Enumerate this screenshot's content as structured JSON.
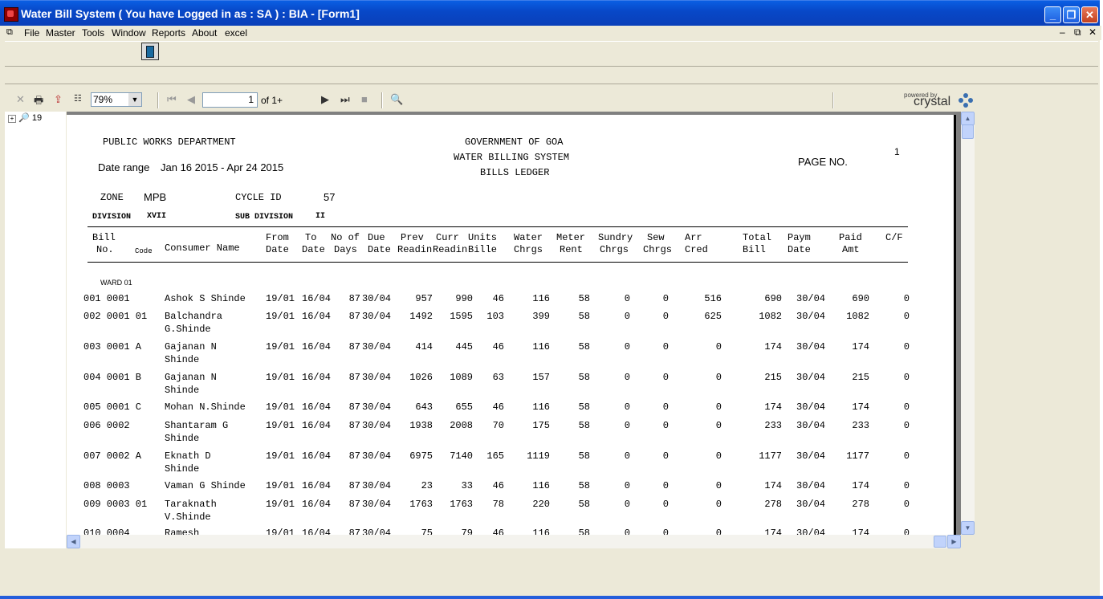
{
  "window": {
    "title": "Water Bill System ( You have Logged in as : SA ) : BIA - [Form1]"
  },
  "menu": [
    "File",
    "Master",
    "Tools",
    "Window",
    "Reports",
    "About",
    "excel"
  ],
  "viewer": {
    "zoom": "79%",
    "page": "1",
    "page_of": "of 1+",
    "powered_by": "powered by",
    "brand": "crystal"
  },
  "tree": {
    "node": "19"
  },
  "report": {
    "dept": "PUBLIC WORKS DEPARTMENT",
    "gov": "GOVERNMENT OF GOA",
    "system": "WATER BILLING SYSTEM",
    "ledger": "BILLS LEDGER",
    "date_range_label": "Date range",
    "date_range": "Jan 16 2015  - Apr 24 2015",
    "page_label": "PAGE NO.",
    "page_no": "1",
    "zone_label": "ZONE",
    "zone": "MPB",
    "cycle_label": "CYCLE ID",
    "cycle": "57",
    "division_label": "DIVISION",
    "division": "XVII",
    "subdivision_label": "SUB DIVISION",
    "subdivision": "II",
    "ward": "WARD 01",
    "headers": {
      "bill1": "Bill",
      "bill2": "No.",
      "code": "Code",
      "name": "Consumer Name",
      "from1": "From",
      "from2": "Date",
      "to1": "To",
      "to2": "Date",
      "nod1": "No of",
      "nod2": "Days",
      "due1": "Due",
      "due2": "Date",
      "prev1": "Prev",
      "prev2": "Readin",
      "curr1": "Curr",
      "curr2": "Readin",
      "units1": "Units",
      "units2": "Bille",
      "water1": "Water",
      "water2": "Chrgs",
      "meter1": "Meter",
      "meter2": "Rent",
      "sundry1": "Sundry",
      "sundry2": "Chrgs",
      "sew1": "Sew",
      "sew2": "Chrgs",
      "arr1": "Arr",
      "arr2": "Cred",
      "total1": "Total",
      "total2": "Bill",
      "paym1": "Paym",
      "paym2": "Date",
      "paid1": "Paid",
      "paid2": "Amt",
      "cf": "C/F"
    },
    "rows": [
      {
        "bill": "001 0001",
        "name1": "Ashok  S Shinde",
        "name2": "",
        "from": "19/01",
        "to": "16/04",
        "days": "87",
        "due": "30/04",
        "prev": "957",
        "curr": "990",
        "units": "46",
        "water": "116",
        "meter": "58",
        "sundry": "0",
        "sew": "0",
        "arr": "516",
        "total": "690",
        "paym": "30/04",
        "paid": "690",
        "cf": "0"
      },
      {
        "bill": "002 0001 01",
        "name1": "Balchandra",
        "name2": "G.Shinde",
        "from": "19/01",
        "to": "16/04",
        "days": "87",
        "due": "30/04",
        "prev": "1492",
        "curr": "1595",
        "units": "103",
        "water": "399",
        "meter": "58",
        "sundry": "0",
        "sew": "0",
        "arr": "625",
        "total": "1082",
        "paym": "30/04",
        "paid": "1082",
        "cf": "0"
      },
      {
        "bill": "003 0001 A",
        "name1": "Gajanan  N",
        "name2": "Shinde",
        "from": "19/01",
        "to": "16/04",
        "days": "87",
        "due": "30/04",
        "prev": "414",
        "curr": "445",
        "units": "46",
        "water": "116",
        "meter": "58",
        "sundry": "0",
        "sew": "0",
        "arr": "0",
        "total": "174",
        "paym": "30/04",
        "paid": "174",
        "cf": "0"
      },
      {
        "bill": "004 0001 B",
        "name1": "Gajanan  N",
        "name2": "Shinde",
        "from": "19/01",
        "to": "16/04",
        "days": "87",
        "due": "30/04",
        "prev": "1026",
        "curr": "1089",
        "units": "63",
        "water": "157",
        "meter": "58",
        "sundry": "0",
        "sew": "0",
        "arr": "0",
        "total": "215",
        "paym": "30/04",
        "paid": "215",
        "cf": "0"
      },
      {
        "bill": "005 0001 C",
        "name1": "Mohan N.Shinde",
        "name2": "",
        "from": "19/01",
        "to": "16/04",
        "days": "87",
        "due": "30/04",
        "prev": "643",
        "curr": "655",
        "units": "46",
        "water": "116",
        "meter": "58",
        "sundry": "0",
        "sew": "0",
        "arr": "0",
        "total": "174",
        "paym": "30/04",
        "paid": "174",
        "cf": "0"
      },
      {
        "bill": "006 0002",
        "name1": "Shantaram  G",
        "name2": "Shinde",
        "from": "19/01",
        "to": "16/04",
        "days": "87",
        "due": "30/04",
        "prev": "1938",
        "curr": "2008",
        "units": "70",
        "water": "175",
        "meter": "58",
        "sundry": "0",
        "sew": "0",
        "arr": "0",
        "total": "233",
        "paym": "30/04",
        "paid": "233",
        "cf": "0"
      },
      {
        "bill": "007 0002 A",
        "name1": "Eknath  D",
        "name2": "Shinde",
        "from": "19/01",
        "to": "16/04",
        "days": "87",
        "due": "30/04",
        "prev": "6975",
        "curr": "7140",
        "units": "165",
        "water": "1119",
        "meter": "58",
        "sundry": "0",
        "sew": "0",
        "arr": "0",
        "total": "1177",
        "paym": "30/04",
        "paid": "1177",
        "cf": "0"
      },
      {
        "bill": "008 0003",
        "name1": "Vaman  G Shinde",
        "name2": "",
        "from": "19/01",
        "to": "16/04",
        "days": "87",
        "due": "30/04",
        "prev": "23",
        "curr": "33",
        "units": "46",
        "water": "116",
        "meter": "58",
        "sundry": "0",
        "sew": "0",
        "arr": "0",
        "total": "174",
        "paym": "30/04",
        "paid": "174",
        "cf": "0"
      },
      {
        "bill": "009 0003 01",
        "name1": "Taraknath",
        "name2": "V.Shinde",
        "from": "19/01",
        "to": "16/04",
        "days": "87",
        "due": "30/04",
        "prev": "1763",
        "curr": "1763",
        "units": "78",
        "water": "220",
        "meter": "58",
        "sundry": "0",
        "sew": "0",
        "arr": "0",
        "total": "278",
        "paym": "30/04",
        "paid": "278",
        "cf": "0"
      },
      {
        "bill": "010 0004",
        "name1": "Ramesh",
        "name2": "",
        "from": "19/01",
        "to": "16/04",
        "days": "87",
        "due": "30/04",
        "prev": "75",
        "curr": "79",
        "units": "46",
        "water": "116",
        "meter": "58",
        "sundry": "0",
        "sew": "0",
        "arr": "0",
        "total": "174",
        "paym": "30/04",
        "paid": "174",
        "cf": "0"
      }
    ]
  }
}
